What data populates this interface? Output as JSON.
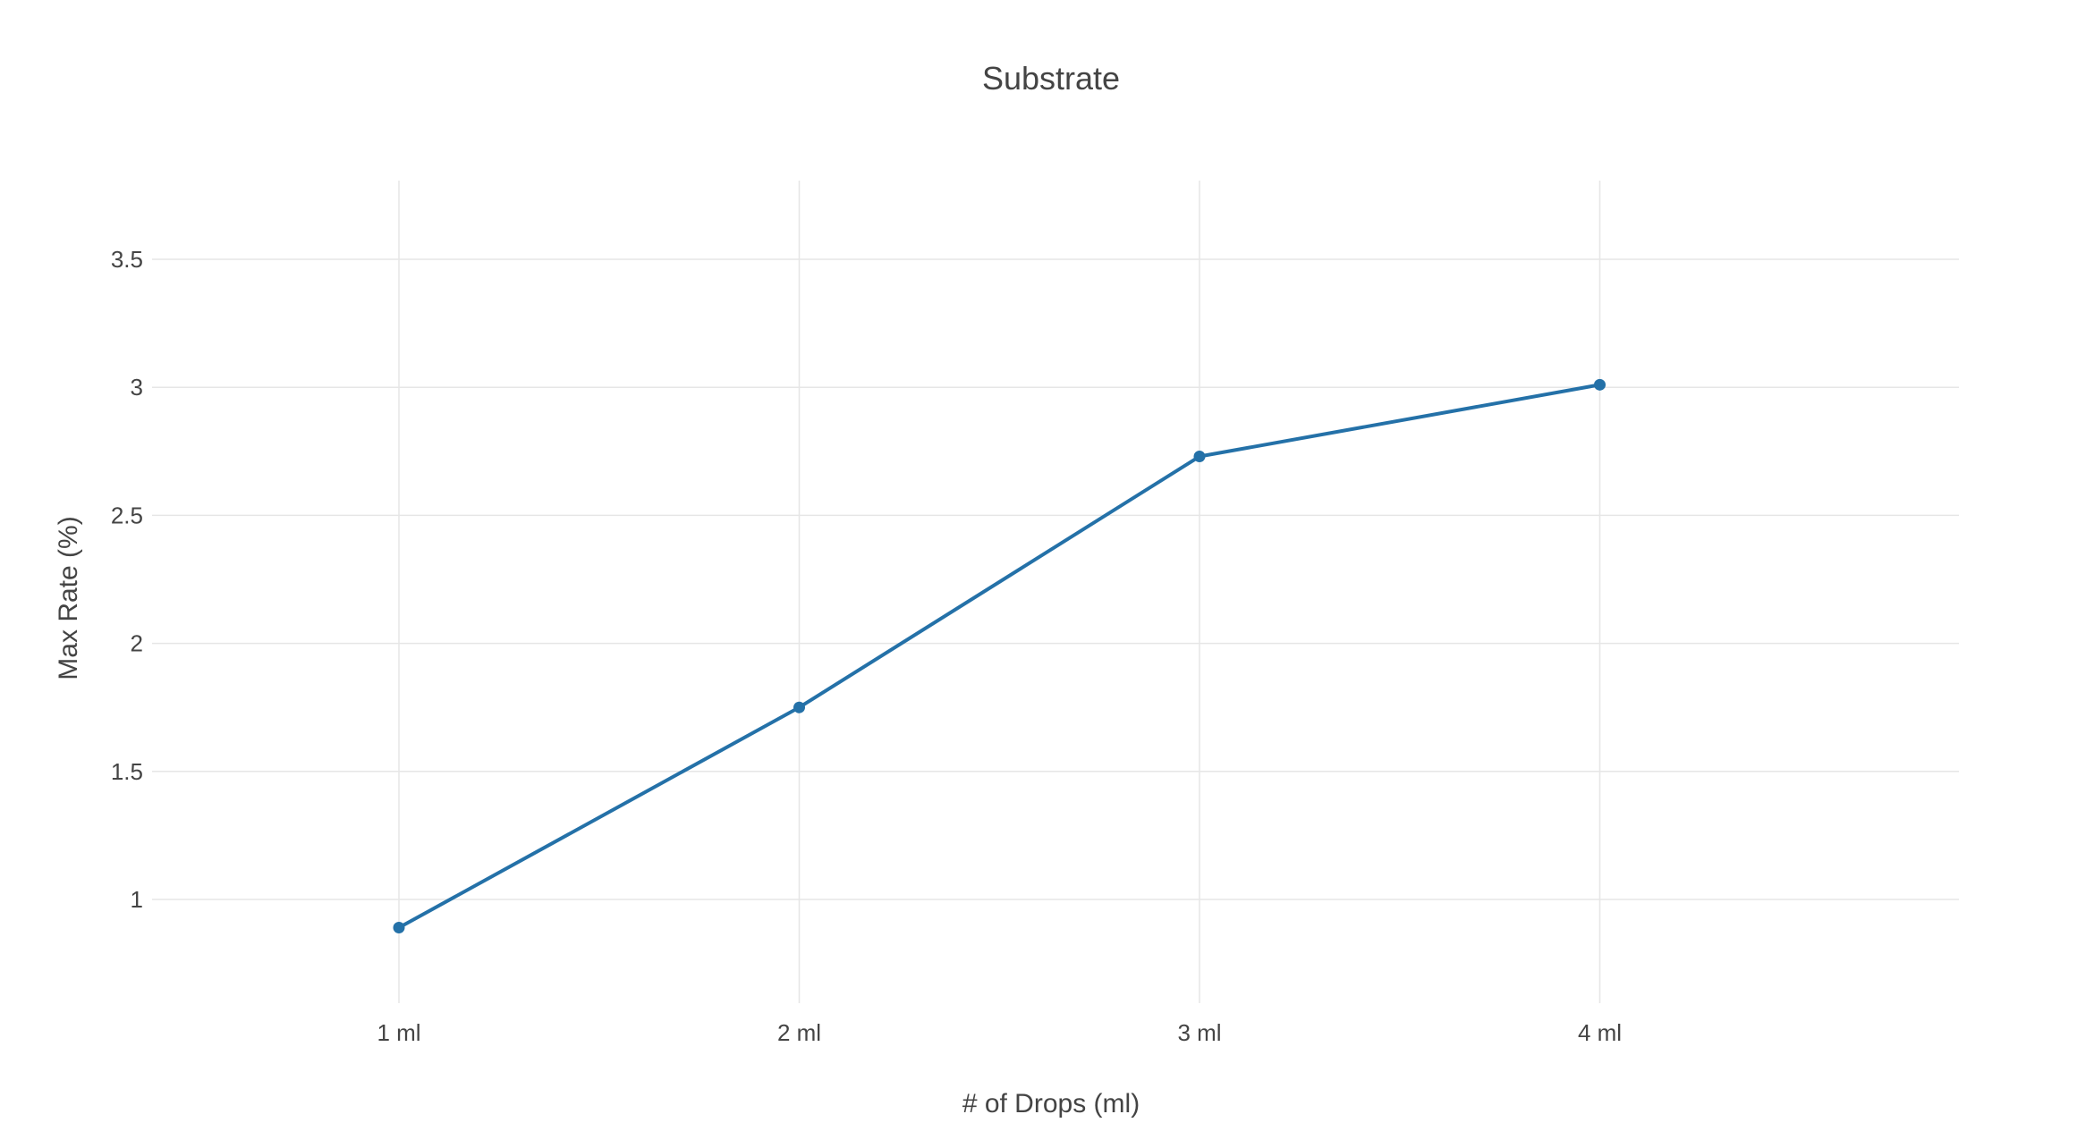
{
  "chart_data": {
    "type": "line",
    "title": "Substrate",
    "xlabel": "# of Drops (ml)",
    "ylabel": "Max Rate (%)",
    "categories": [
      "1 ml",
      "2 ml",
      "3 ml",
      "4 ml"
    ],
    "series": [
      {
        "values": [
          0.89,
          1.75,
          2.73,
          3.01
        ]
      }
    ],
    "ylim": [
      0.55,
      3.8
    ],
    "yticks": [
      1,
      1.5,
      2,
      2.5,
      3,
      3.5
    ],
    "ytick_labels": [
      "1",
      "1.5",
      "2",
      "2.5",
      "3",
      "3.5"
    ],
    "grid": true,
    "legend": "none",
    "colors": {
      "line": "#2471a8",
      "grid": "#e6e6e6",
      "text": "#444444"
    }
  }
}
